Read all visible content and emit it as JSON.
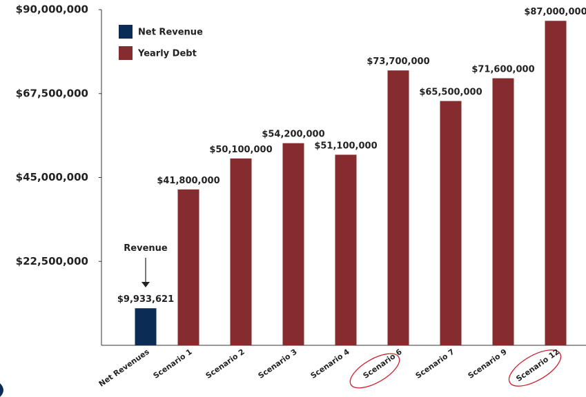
{
  "chart_data": {
    "type": "bar",
    "categories": [
      "Net Revenues",
      "Scenario 1",
      "Scenario 2",
      "Scenario 3",
      "Scenario 4",
      "Scenario 6",
      "Scenario 7",
      "Scenario 9",
      "Scenario 12"
    ],
    "series": [
      {
        "name": "Net Revenue",
        "color": "#0b2d55",
        "values": [
          9933621,
          null,
          null,
          null,
          null,
          null,
          null,
          null,
          null
        ],
        "value_labels": [
          "$9,933,621",
          null,
          null,
          null,
          null,
          null,
          null,
          null,
          null
        ]
      },
      {
        "name": "Yearly Debt",
        "color": "#862b2e",
        "values": [
          null,
          41800000,
          50100000,
          54200000,
          51100000,
          73700000,
          65500000,
          71600000,
          87000000
        ],
        "value_labels": [
          null,
          "$41,800,000",
          "$50,100,000",
          "$54,200,000",
          "$51,100,000",
          "$73,700,000",
          "$65,500,000",
          "$71,600,000",
          "$87,000,000"
        ]
      }
    ],
    "ylim": [
      0,
      90000000
    ],
    "yticks": [
      {
        "value": 22500000,
        "label": "$22,500,000"
      },
      {
        "value": 45000000,
        "label": "$45,000,000"
      },
      {
        "value": 67500000,
        "label": "$67,500,000"
      },
      {
        "value": 90000000,
        "label": "$90,000,000"
      }
    ],
    "annotation": "Revenue",
    "legend": "top-left"
  }
}
